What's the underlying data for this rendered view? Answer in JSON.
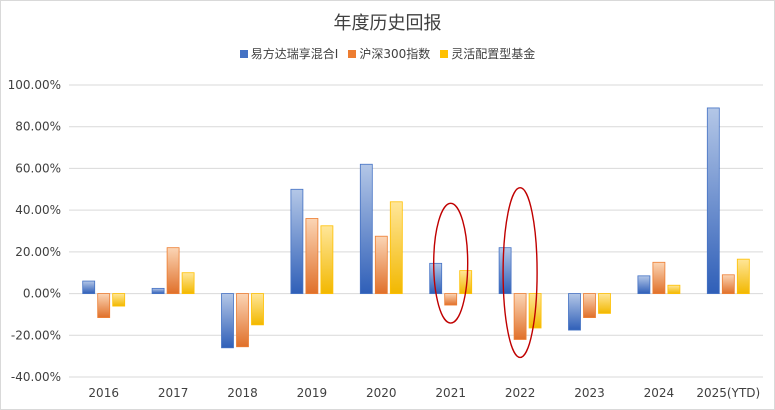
{
  "chart_data": {
    "type": "bar",
    "title": "年度历史回报",
    "categories": [
      "2016",
      "2017",
      "2018",
      "2019",
      "2020",
      "2021",
      "2022",
      "2023",
      "2024",
      "2025(YTD)"
    ],
    "series": [
      {
        "name": "易方达瑞享混合I",
        "color": "#4472c4",
        "values": [
          6,
          2.5,
          -26,
          50,
          62,
          14.5,
          22,
          -17.5,
          8.5,
          89
        ]
      },
      {
        "name": "沪深300指数",
        "color": "#ed7d31",
        "values": [
          -11.5,
          22,
          -25.5,
          36,
          27.5,
          -5.5,
          -22,
          -11.5,
          15,
          9
        ]
      },
      {
        "name": "灵活配置型基金",
        "color": "#ffc000",
        "values": [
          -6,
          10,
          -15,
          32.5,
          44,
          11,
          -16.5,
          -9.5,
          4,
          16.5
        ]
      }
    ],
    "yticks": [
      "100.00%",
      "80.00%",
      "60.00%",
      "40.00%",
      "20.00%",
      "0.00%",
      "-20.00%",
      "-40.00%"
    ],
    "ylim": [
      -40,
      100
    ],
    "grid": true,
    "legend_position": "top",
    "annotations": [
      {
        "type": "ellipse",
        "color": "#c00000",
        "category": "2021"
      },
      {
        "type": "ellipse",
        "color": "#c00000",
        "category": "2022"
      }
    ]
  }
}
